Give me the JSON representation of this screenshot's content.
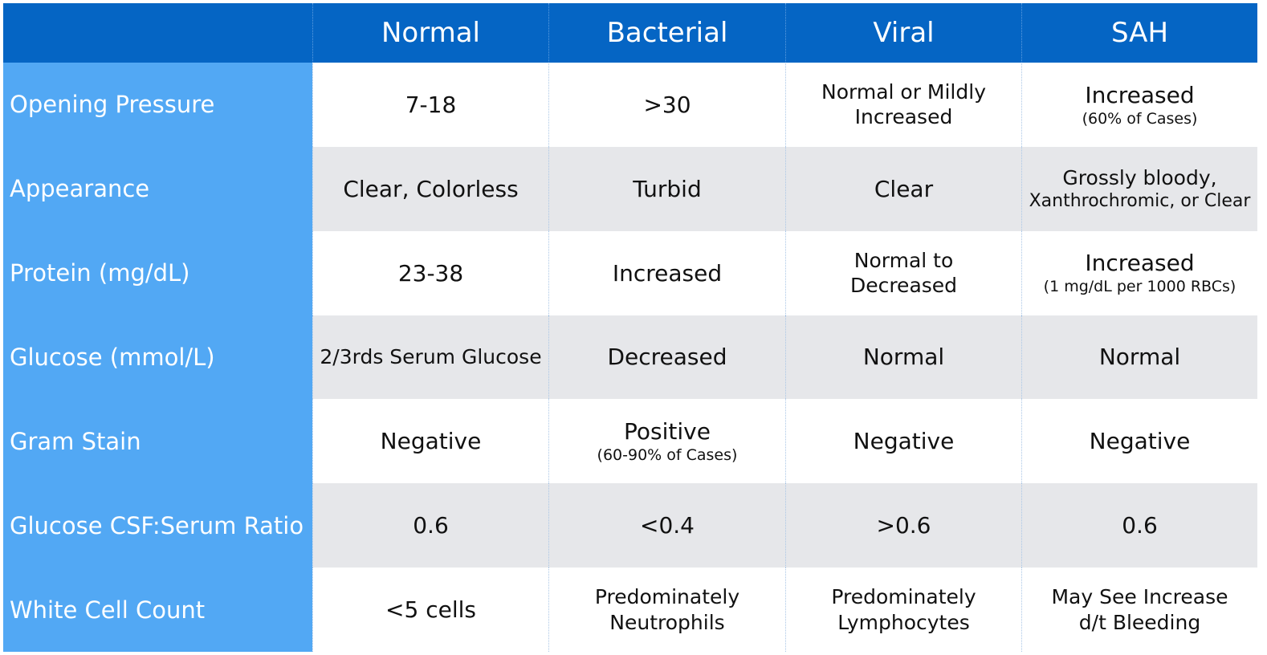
{
  "header": {
    "columns": [
      "Normal",
      "Bacterial",
      "Viral",
      "SAH"
    ]
  },
  "table": {
    "rows": [
      {
        "label": "Opening Pressure",
        "cells": [
          {
            "lines": [
              "7-18"
            ]
          },
          {
            "lines": [
              ">30"
            ]
          },
          {
            "lines": [
              "Normal or Mildly",
              "Increased"
            ]
          },
          {
            "lines": [
              "Increased"
            ],
            "note": "(60% of Cases)"
          }
        ]
      },
      {
        "label": "Appearance",
        "cells": [
          {
            "lines": [
              "Clear, Colorless"
            ]
          },
          {
            "lines": [
              "Turbid"
            ]
          },
          {
            "lines": [
              "Clear"
            ]
          },
          {
            "lines": [
              "Grossly bloody,",
              "Xanthrochromic, or Clear"
            ]
          }
        ]
      },
      {
        "label": "Protein (mg/dL)",
        "cells": [
          {
            "lines": [
              "23-38"
            ]
          },
          {
            "lines": [
              "Increased"
            ]
          },
          {
            "lines": [
              "Normal to",
              "Decreased"
            ]
          },
          {
            "lines": [
              "Increased"
            ],
            "note": "(1 mg/dL per 1000 RBCs)"
          }
        ]
      },
      {
        "label": "Glucose (mmol/L)",
        "cells": [
          {
            "lines": [
              "2/3rds Serum Glucose"
            ]
          },
          {
            "lines": [
              "Decreased"
            ]
          },
          {
            "lines": [
              "Normal"
            ]
          },
          {
            "lines": [
              "Normal"
            ]
          }
        ]
      },
      {
        "label": "Gram Stain",
        "cells": [
          {
            "lines": [
              "Negative"
            ]
          },
          {
            "lines": [
              "Positive"
            ],
            "note": "(60-90% of Cases)"
          },
          {
            "lines": [
              "Negative"
            ]
          },
          {
            "lines": [
              "Negative"
            ]
          }
        ]
      },
      {
        "label": "Glucose CSF:Serum Ratio",
        "cells": [
          {
            "lines": [
              "0.6"
            ]
          },
          {
            "lines": [
              "<0.4"
            ]
          },
          {
            "lines": [
              ">0.6"
            ]
          },
          {
            "lines": [
              "0.6"
            ]
          }
        ]
      },
      {
        "label": "White Cell Count",
        "cells": [
          {
            "lines": [
              "<5 cells"
            ]
          },
          {
            "lines": [
              "Predominately",
              "Neutrophils"
            ]
          },
          {
            "lines": [
              "Predominately",
              "Lymphocytes"
            ]
          },
          {
            "lines": [
              "May See Increase",
              "d/t Bleeding"
            ]
          }
        ]
      }
    ]
  }
}
